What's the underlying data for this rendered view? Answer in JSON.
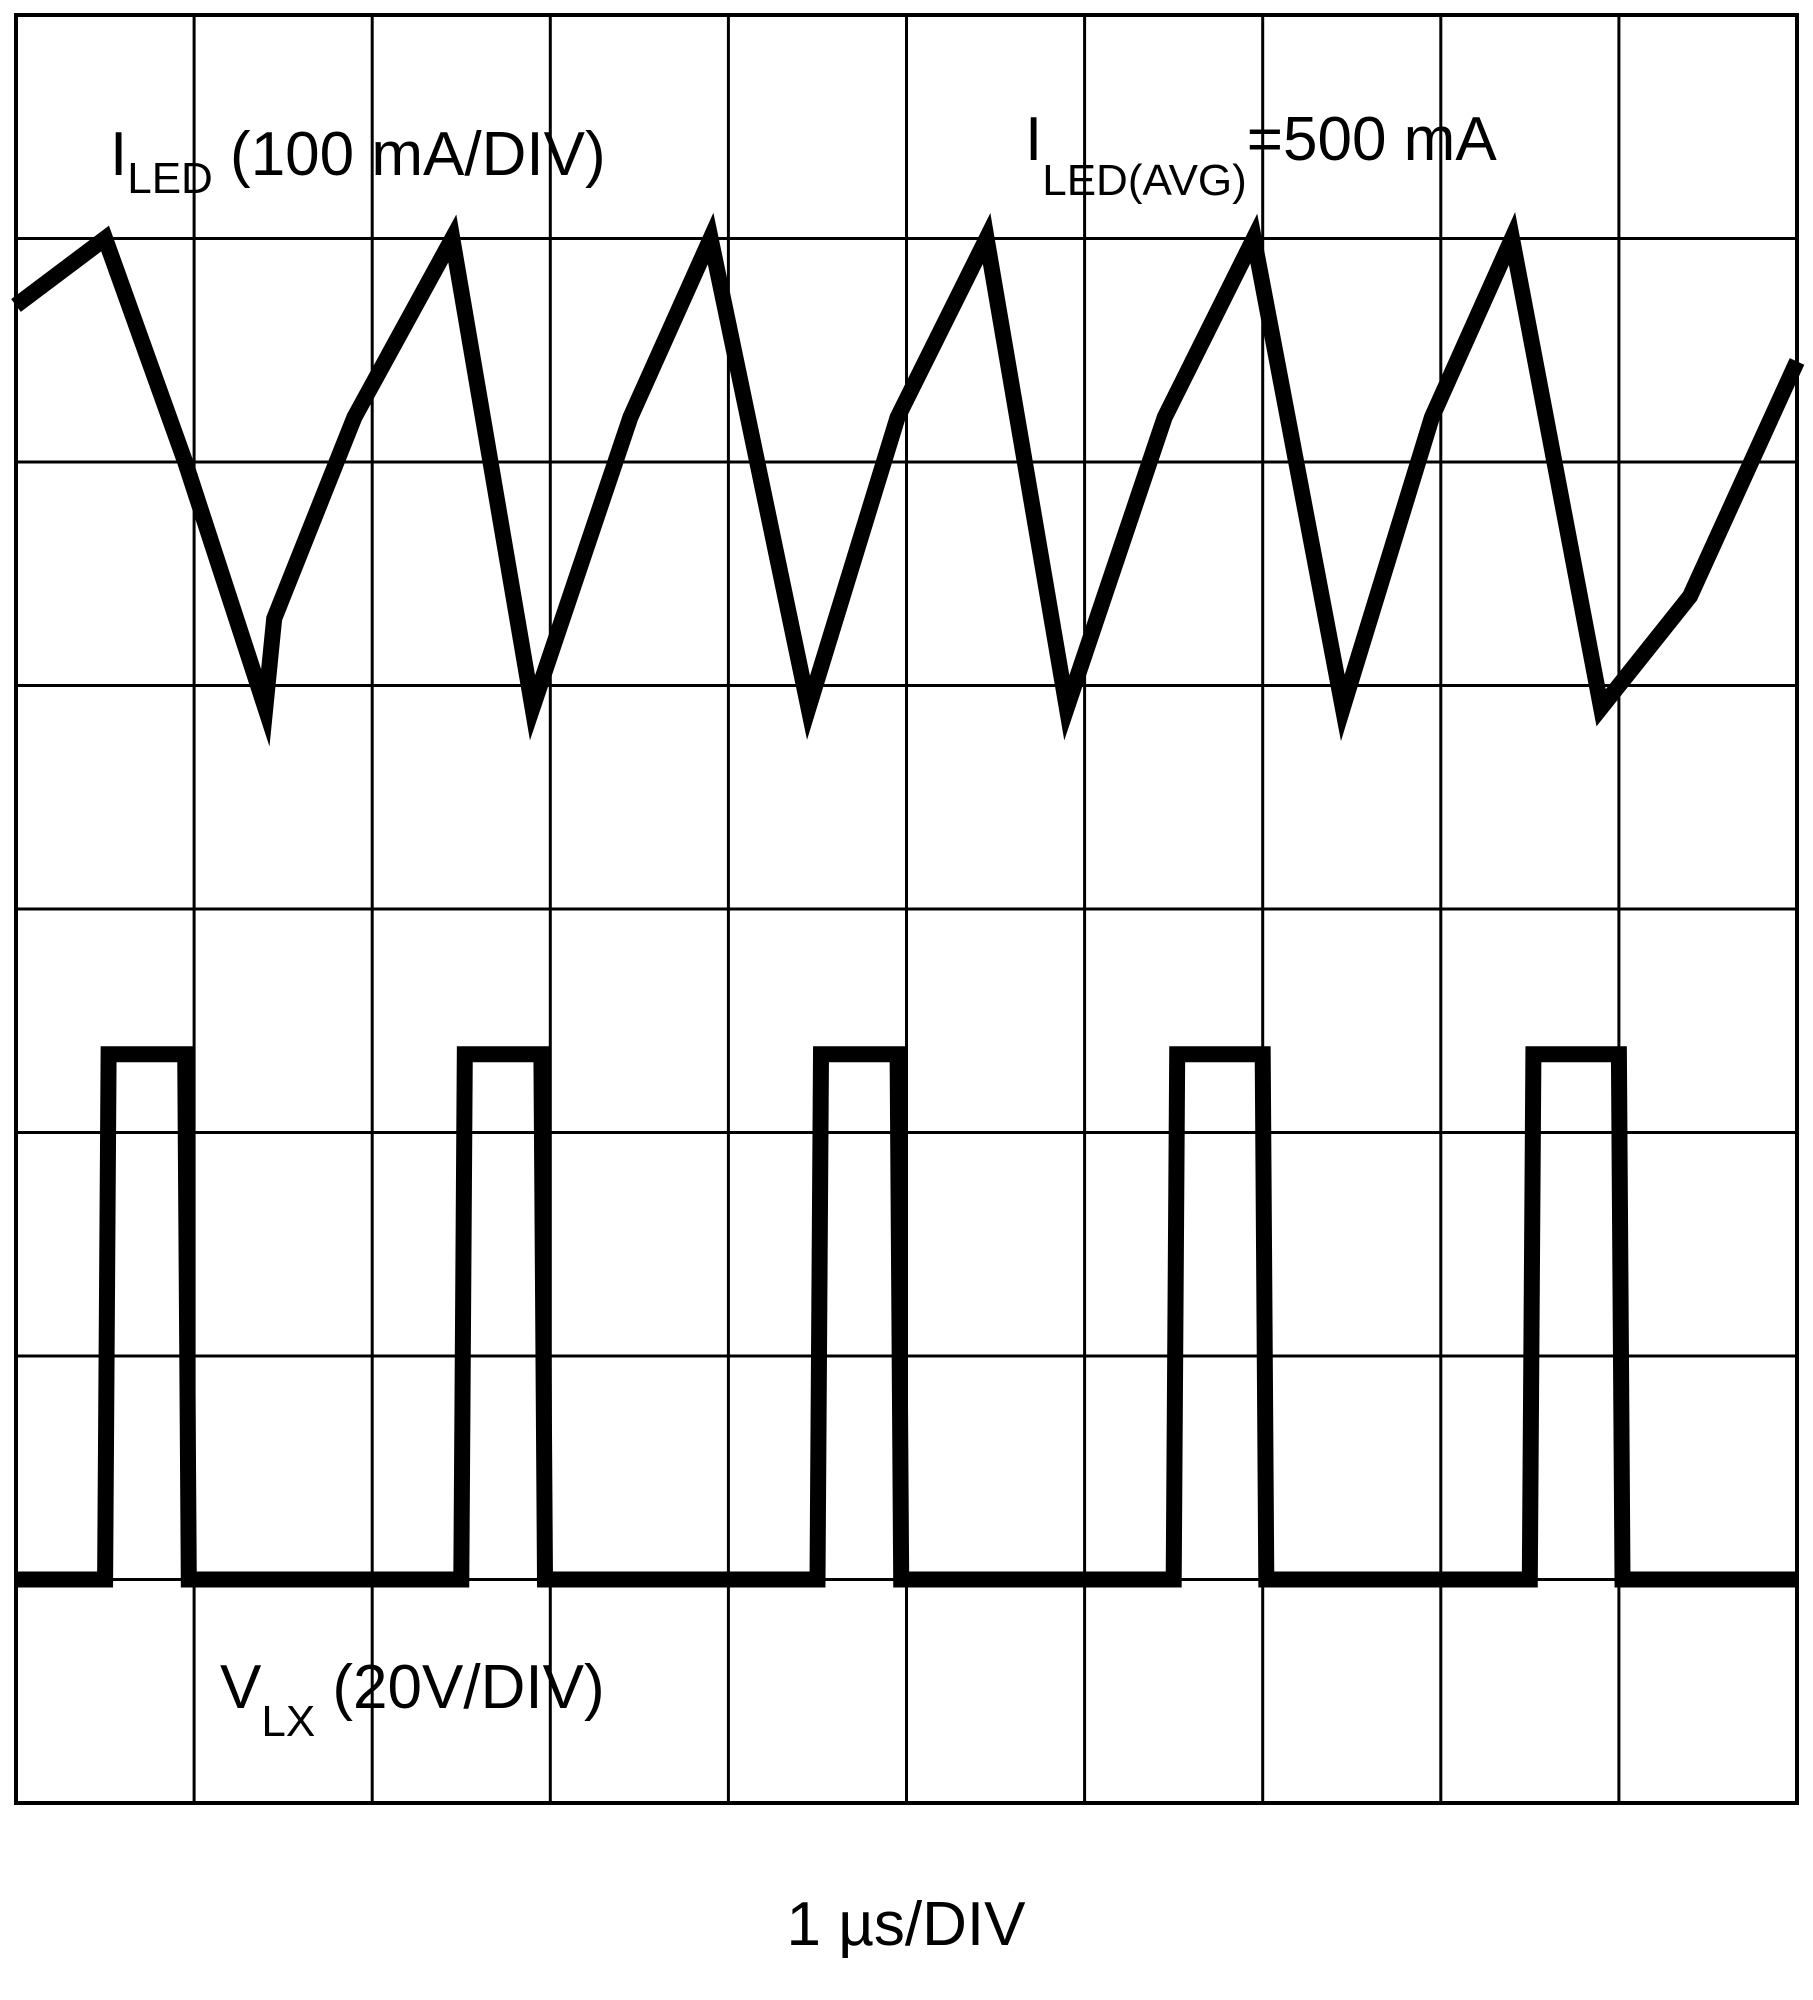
{
  "chart_data": {
    "type": "line",
    "grid": true,
    "x_divisions": 10,
    "y_divisions": 8,
    "x_scale_label": "1 µs/DIV",
    "series": [
      {
        "name": "I_LED",
        "label_main": "I",
        "label_sub": "LED",
        "label_suffix": " (100 mA/DIV)",
        "color": "#000000",
        "x": [
          0.0,
          0.5,
          0.95,
          1.4,
          1.45,
          1.9,
          2.45,
          2.9,
          3.45,
          3.9,
          4.45,
          4.95,
          5.45,
          5.9,
          6.45,
          6.95,
          7.45,
          7.95,
          8.4,
          8.9,
          9.4,
          10.0
        ],
        "y": [
          6.7,
          7.0,
          6.0,
          4.9,
          5.3,
          6.2,
          7.0,
          4.9,
          6.2,
          7.0,
          4.9,
          6.2,
          7.0,
          4.9,
          6.2,
          7.0,
          4.9,
          6.2,
          7.0,
          4.9,
          5.4,
          6.45
        ]
      },
      {
        "name": "V_LX",
        "label_main": "V",
        "label_sub": "LX",
        "label_suffix": " (20V/DIV)",
        "color": "#000000",
        "x": [
          0.0,
          0.5,
          0.52,
          0.95,
          0.97,
          2.5,
          2.52,
          2.95,
          2.97,
          4.5,
          4.52,
          4.95,
          4.97,
          6.5,
          6.52,
          7.0,
          7.02,
          8.5,
          8.52,
          9.0,
          9.02,
          10.0
        ],
        "y": [
          1.0,
          1.0,
          3.35,
          3.35,
          1.0,
          1.0,
          3.35,
          3.35,
          1.0,
          1.0,
          3.35,
          3.35,
          1.0,
          1.0,
          3.35,
          3.35,
          1.0,
          1.0,
          3.35,
          3.35,
          1.0,
          1.0
        ]
      }
    ],
    "annotations": [
      {
        "main": "I",
        "sub": "LED(AVG)",
        "suffix": "=500 mA"
      }
    ]
  }
}
